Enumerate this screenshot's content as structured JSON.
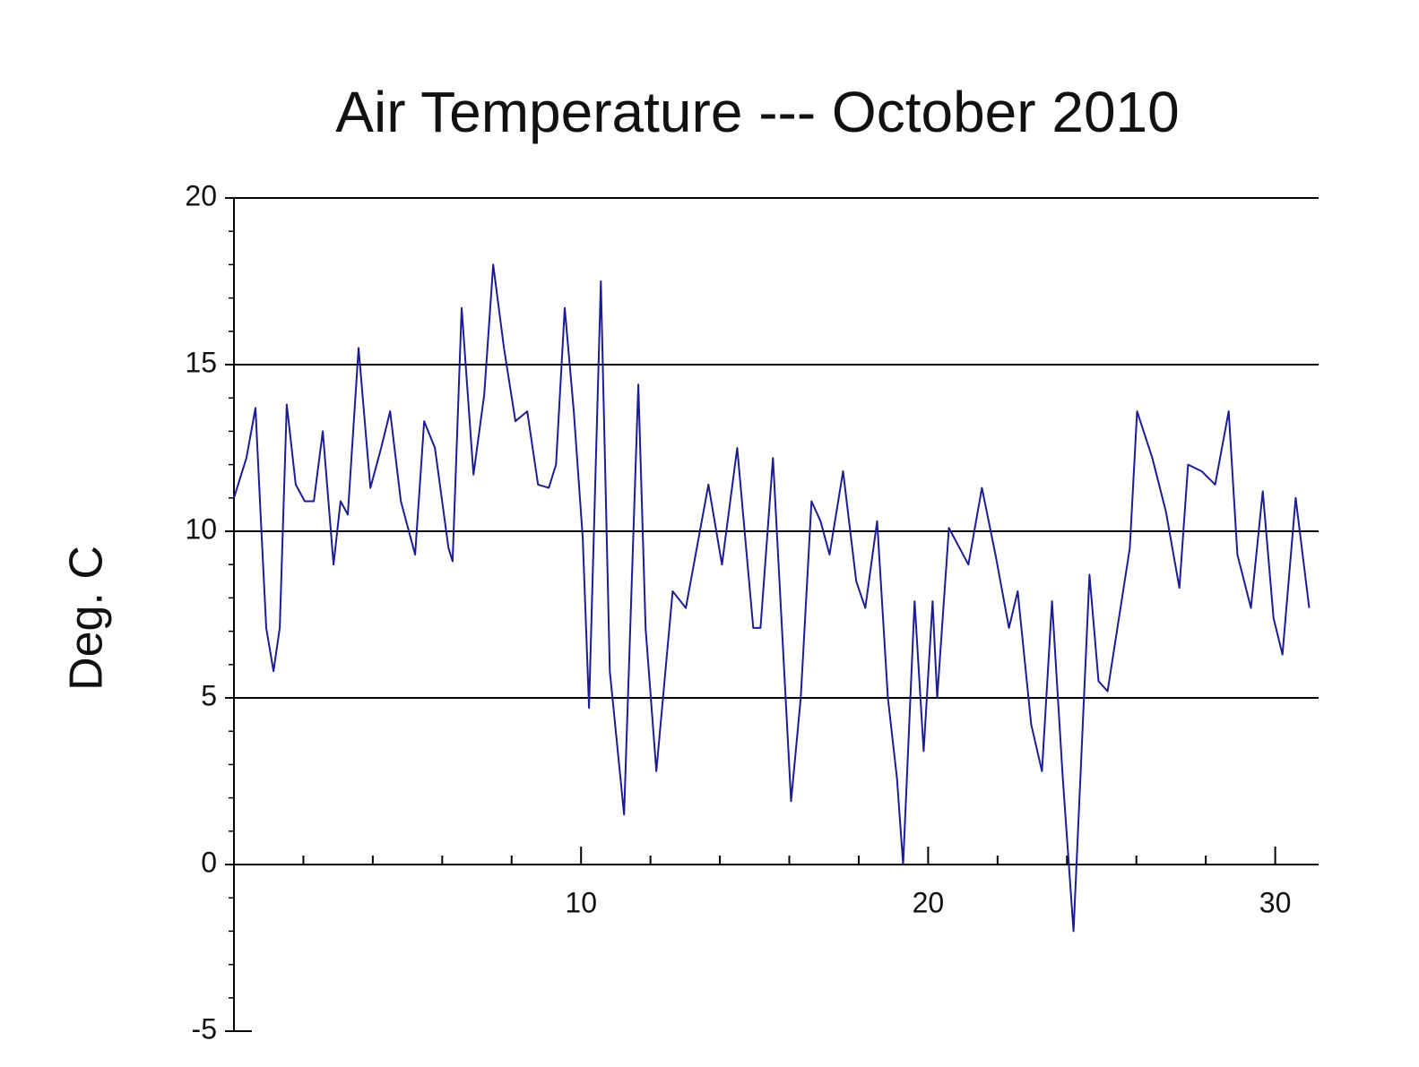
{
  "chart_data": {
    "type": "line",
    "title": "Air Temperature --- October 2010",
    "y_label": "Deg. C",
    "x": [
      0,
      0.36,
      0.62,
      0.75,
      0.93,
      1.14,
      1.32,
      1.52,
      1.78,
      2.04,
      2.3,
      2.56,
      2.87,
      3.07,
      3.28,
      3.59,
      3.93,
      4.24,
      4.5,
      4.81,
      5.22,
      5.48,
      5.79,
      6.18,
      6.3,
      6.56,
      6.9,
      7.21,
      7.47,
      7.78,
      8.11,
      8.45,
      8.76,
      9.07,
      9.28,
      9.53,
      9.79,
      10.05,
      10.23,
      10.57,
      10.83,
      11.24,
      11.65,
      11.86,
      12.17,
      12.64,
      13.02,
      13.67,
      14.06,
      14.5,
      14.96,
      15.17,
      15.53,
      16.05,
      16.33,
      16.64,
      16.9,
      17.16,
      17.55,
      17.93,
      18.19,
      18.53,
      18.84,
      19.1,
      19.28,
      19.61,
      19.87,
      20.13,
      20.26,
      20.6,
      21.16,
      21.55,
      21.94,
      22.33,
      22.58,
      22.97,
      23.28,
      23.57,
      23.88,
      24.19,
      24.65,
      24.91,
      25.17,
      25.81,
      26.02,
      26.46,
      26.85,
      27.24,
      27.49,
      27.88,
      28.27,
      28.66,
      28.91,
      29.3,
      29.64,
      29.95,
      30.21,
      30.59,
      30.98
    ],
    "series": [
      {
        "name": "Air Temperature",
        "color": "#1c1c96",
        "values": [
          11.0,
          12.2,
          13.7,
          10.9,
          7.1,
          5.8,
          7.1,
          13.8,
          11.4,
          10.9,
          10.9,
          13.0,
          9.0,
          10.9,
          10.5,
          15.5,
          11.3,
          12.5,
          13.6,
          10.9,
          9.3,
          13.3,
          12.5,
          9.5,
          9.1,
          16.7,
          11.7,
          14.1,
          18.0,
          15.5,
          13.3,
          13.6,
          11.4,
          11.3,
          12.0,
          16.7,
          13.6,
          9.8,
          4.7,
          17.5,
          5.8,
          1.5,
          14.4,
          7.1,
          2.8,
          8.2,
          7.7,
          11.4,
          9.0,
          12.5,
          7.1,
          7.1,
          12.2,
          1.9,
          5.0,
          10.9,
          10.3,
          9.3,
          11.8,
          8.5,
          7.7,
          10.3,
          5.0,
          2.6,
          0.0,
          7.9,
          3.4,
          7.9,
          5.0,
          10.1,
          9.0,
          11.3,
          9.3,
          7.1,
          8.2,
          4.2,
          2.8,
          7.9,
          2.6,
          -2.0,
          8.7,
          5.5,
          5.2,
          9.5,
          13.6,
          12.2,
          10.6,
          8.3,
          12.0,
          11.8,
          11.4,
          13.6,
          9.3,
          7.7,
          11.2,
          7.4,
          6.3,
          11.0,
          7.7
        ]
      }
    ],
    "xlim": [
      0,
      31.25
    ],
    "xticks": [
      10,
      20,
      30
    ],
    "xminorticks": [
      2,
      4,
      6,
      8,
      12,
      14,
      16,
      18,
      22,
      24,
      26,
      28
    ],
    "ylim": [
      -5,
      20
    ],
    "yticks": [
      -5,
      0,
      5,
      10,
      15,
      20
    ],
    "yminorticks": [
      -4,
      -3,
      -2,
      -1,
      1,
      2,
      3,
      4,
      6,
      7,
      8,
      9,
      11,
      12,
      13,
      14,
      16,
      17,
      18,
      19
    ],
    "grid": true
  }
}
